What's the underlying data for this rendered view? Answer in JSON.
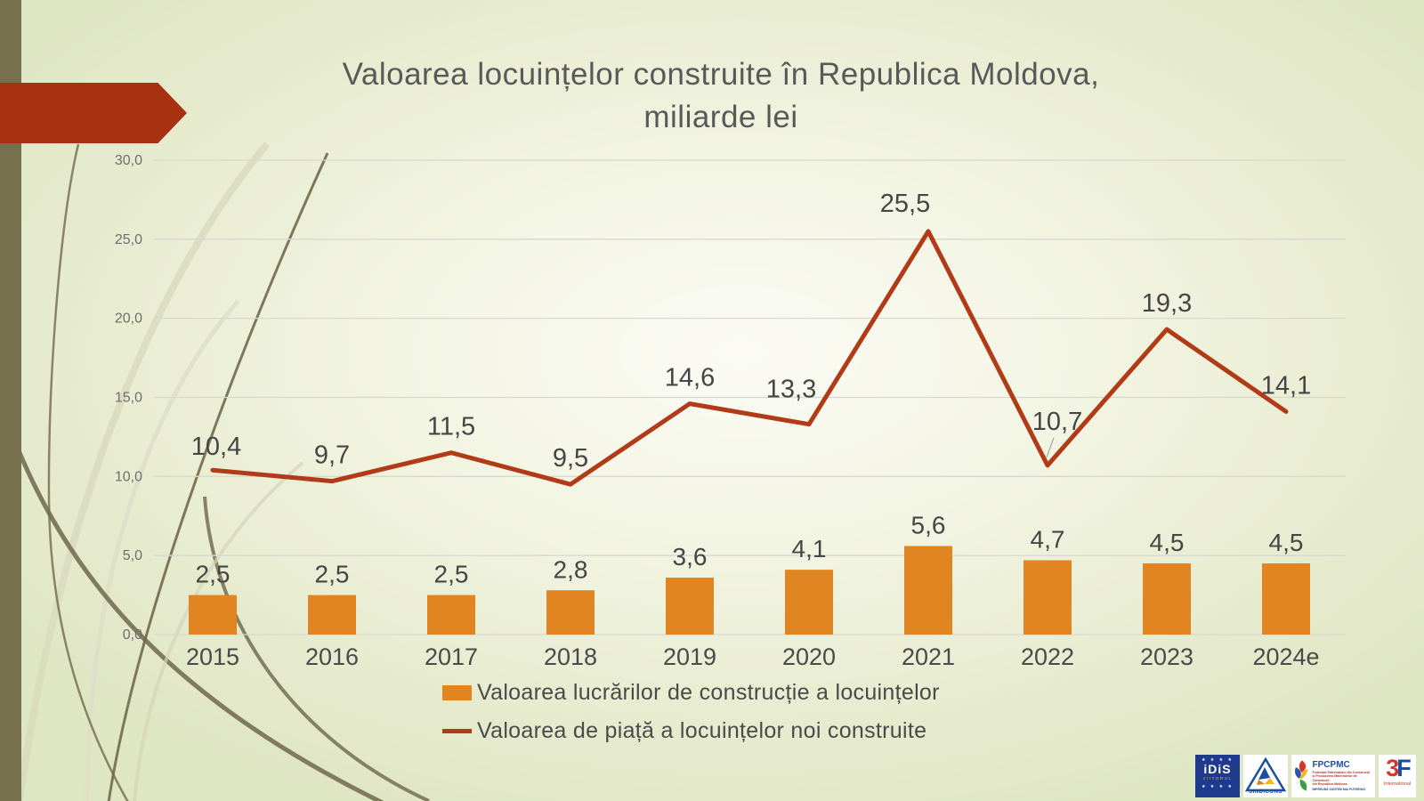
{
  "slide": {
    "title_line1": "Valoarea locuințelor construite în Republica Moldova,",
    "title_line2": "miliarde lei"
  },
  "chart_data": {
    "type": "combo",
    "title": "Valoarea locuințelor construite în Republica Moldova, miliarde lei",
    "categories": [
      "2015",
      "2016",
      "2017",
      "2018",
      "2019",
      "2020",
      "2021",
      "2022",
      "2023",
      "2024e"
    ],
    "series": [
      {
        "name": "Valoarea lucrărilor de construcție a locuințelor",
        "type": "bar",
        "color": "#E08521",
        "values": [
          2.5,
          2.5,
          2.5,
          2.8,
          3.6,
          4.1,
          5.6,
          4.7,
          4.5,
          4.5
        ],
        "labels": [
          "2,5",
          "2,5",
          "2,5",
          "2,8",
          "3,6",
          "4,1",
          "5,6",
          "4,7",
          "4,5",
          "4,5"
        ]
      },
      {
        "name": "Valoarea de piață a locuințelor noi construite",
        "type": "line",
        "color": "#B13A17",
        "values": [
          10.4,
          9.7,
          11.5,
          9.5,
          14.6,
          13.3,
          25.5,
          10.7,
          19.3,
          14.1
        ],
        "labels": [
          "10,4",
          "9,7",
          "11,5",
          "9,5",
          "14,6",
          "13,3",
          "25,5",
          "10,7",
          "19,3",
          "14,1"
        ]
      }
    ],
    "y_axis": {
      "min": 0,
      "max": 30,
      "step": 5,
      "tick_labels": [
        "0,0",
        "5,0",
        "10,0",
        "15,0",
        "20,0",
        "25,0",
        "30,0"
      ]
    },
    "grid": true,
    "legend_position": "bottom"
  },
  "colors": {
    "accent_red": "#A73110",
    "bar_orange": "#E08521",
    "line_red": "#B13A17",
    "gridline": "#D8D8D0",
    "title_gray": "#595959",
    "left_bar_olive": "#76704F"
  },
  "logos": {
    "idis": {
      "stars_top": "★ ★ ★ ★",
      "name": "iDiS",
      "sub": "VIITORUL",
      "stars_bottom": "★ ★ ★ ★"
    },
    "sindicons": {
      "name": "SINDICONS"
    },
    "fpcpmc": {
      "name": "FPCPMC",
      "line1": "Federația Patronatului din Construcții",
      "line2": "și Producerea Materialelor de Construcții",
      "line3": "din Republica Moldova",
      "motto": "ÎMPREUNĂ SUNTEM MAI PUTERNICI"
    },
    "f3": {
      "digit": "3",
      "letter": "F",
      "sub": "International"
    }
  }
}
